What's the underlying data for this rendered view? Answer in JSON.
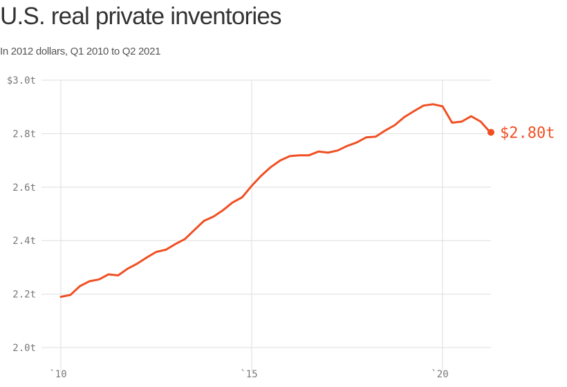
{
  "chart_data": {
    "type": "line",
    "title": "U.S. real private inventories",
    "subtitle": "In 2012 dollars, Q1 2010 to Q2 2021",
    "xlabel": "",
    "ylabel": "",
    "ylim": [
      2.0,
      3.0
    ],
    "xlim": [
      2010.0,
      2021.25
    ],
    "y_ticks": [
      {
        "value": 3.0,
        "label": "$3.0t"
      },
      {
        "value": 2.8,
        "label": "2.8t"
      },
      {
        "value": 2.6,
        "label": "2.6t"
      },
      {
        "value": 2.4,
        "label": "2.4t"
      },
      {
        "value": 2.2,
        "label": "2.2t"
      },
      {
        "value": 2.0,
        "label": "2.0t"
      }
    ],
    "x_ticks": [
      {
        "value": 2010,
        "label": "`10"
      },
      {
        "value": 2015,
        "label": "`15"
      },
      {
        "value": 2020,
        "label": "`20"
      }
    ],
    "grid": true,
    "color": "#f04f23",
    "series": [
      {
        "name": "Real private inventories",
        "values": [
          2.19,
          2.197,
          2.23,
          2.248,
          2.255,
          2.274,
          2.27,
          2.295,
          2.314,
          2.337,
          2.358,
          2.366,
          2.387,
          2.406,
          2.44,
          2.474,
          2.49,
          2.514,
          2.543,
          2.562,
          2.605,
          2.643,
          2.675,
          2.7,
          2.716,
          2.719,
          2.719,
          2.733,
          2.729,
          2.737,
          2.754,
          2.767,
          2.786,
          2.789,
          2.812,
          2.832,
          2.862,
          2.884,
          2.905,
          2.91,
          2.902,
          2.841,
          2.845,
          2.865,
          2.845,
          2.805
        ]
      }
    ],
    "end_label": "$2.80t"
  }
}
